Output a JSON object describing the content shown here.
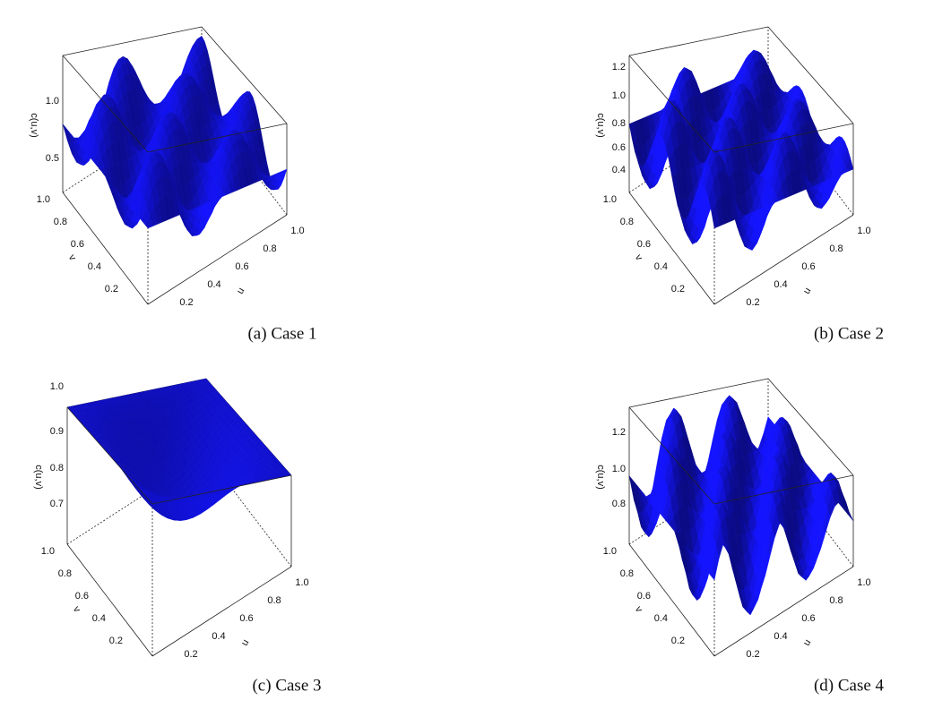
{
  "panels": [
    {
      "caption": "(a) Case 1",
      "z_axis_label": "c(u,v)",
      "u_axis_label": "u",
      "v_axis_label": "v",
      "z_ticks": [
        "1.0",
        "0.5"
      ],
      "u_ticks": [
        "0.2",
        "0.4",
        "0.6",
        "0.8",
        "1.0"
      ],
      "v_ticks": [
        "0.2",
        "0.4",
        "0.6",
        "0.8",
        "1.0"
      ]
    },
    {
      "caption": "(b) Case 2",
      "z_axis_label": "c(u,v)",
      "u_axis_label": "u",
      "v_axis_label": "v",
      "z_ticks": [
        "1.2",
        "1.0",
        "0.8",
        "0.6",
        "0.4"
      ],
      "u_ticks": [
        "0.2",
        "0.4",
        "0.6",
        "0.8",
        "1.0"
      ],
      "v_ticks": [
        "0.2",
        "0.4",
        "0.6",
        "0.8",
        "1.0"
      ]
    },
    {
      "caption": "(c) Case 3",
      "z_axis_label": "c(u,v)",
      "u_axis_label": "u",
      "v_axis_label": "v",
      "z_ticks": [
        "1.0",
        "0.9",
        "0.8",
        "0.7"
      ],
      "u_ticks": [
        "0.2",
        "0.4",
        "0.6",
        "0.8",
        "1.0"
      ],
      "v_ticks": [
        "0.2",
        "0.4",
        "0.6",
        "0.8",
        "1.0"
      ]
    },
    {
      "caption": "(d) Case 4",
      "z_axis_label": "c(u,v)",
      "u_axis_label": "u",
      "v_axis_label": "v",
      "z_ticks": [
        "1.2",
        "1.0",
        "0.8"
      ],
      "u_ticks": [
        "0.2",
        "0.4",
        "0.6",
        "0.8",
        "1.0"
      ],
      "v_ticks": [
        "0.2",
        "0.4",
        "0.6",
        "0.8",
        "1.0"
      ]
    }
  ]
}
